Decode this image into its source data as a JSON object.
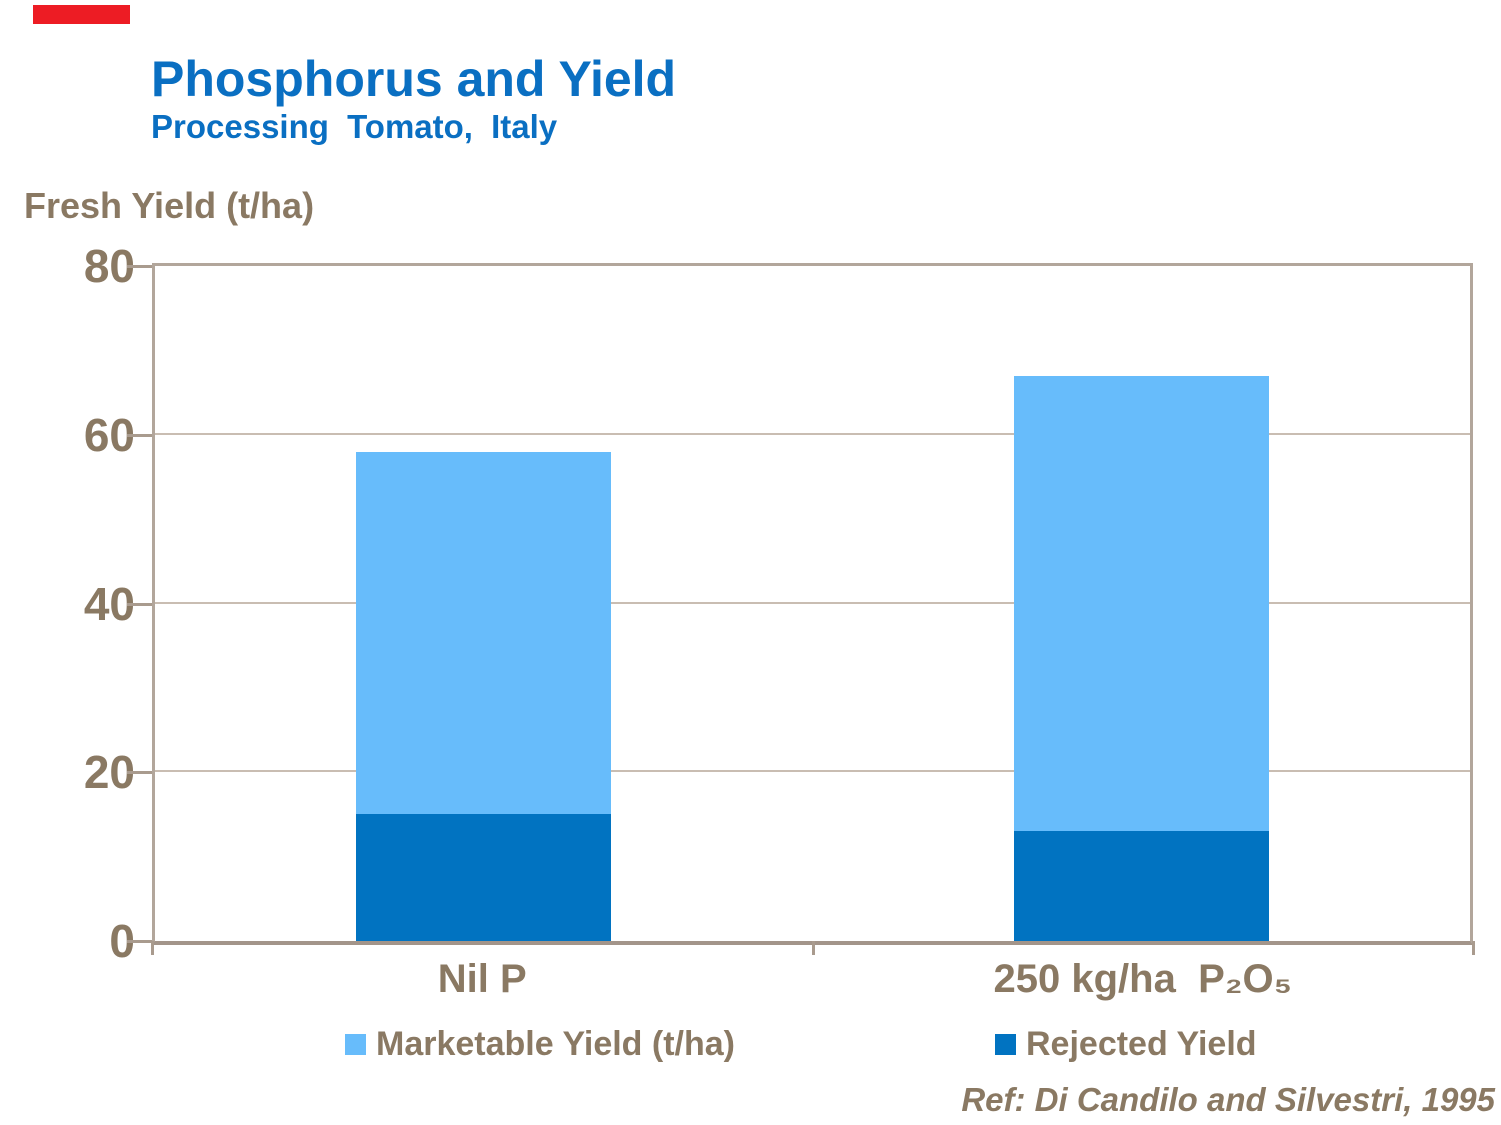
{
  "slide": {
    "title": "Phosphorus and Yield",
    "subtitle": "Processing Tomato, Italy",
    "y_axis_title": "Fresh Yield (t/ha)",
    "reference": "Ref: Di Candilo and Silvestri, 1995"
  },
  "colors": {
    "title_blue": "#0a6fc2",
    "text_brown": "#8a7963",
    "marketable_blue": "#67bcfb",
    "rejected_blue": "#0173c1",
    "frame_tan": "#b2a69b",
    "gridline_gray": "#c9bdb2",
    "accent_red": "#ed1c24"
  },
  "chart_data": {
    "type": "bar",
    "stacked": true,
    "title": "Phosphorus and Yield",
    "subtitle": "Processing Tomato, Italy",
    "ylabel": "Fresh Yield (t/ha)",
    "xlabel": "",
    "ylim": [
      0,
      80
    ],
    "yticks": [
      0,
      20,
      40,
      60,
      80
    ],
    "grid": "horizontal",
    "legend_position": "bottom",
    "categories": [
      "Nil P",
      "250 kg/ha  P₂O₅"
    ],
    "series": [
      {
        "name": "Marketable Yield (t/ha)",
        "color": "#67bcfb",
        "values": [
          43,
          54
        ]
      },
      {
        "name": "Rejected Yield",
        "color": "#0173c1",
        "values": [
          15,
          13
        ]
      }
    ],
    "totals": [
      58,
      67
    ],
    "reference": "Ref: Di Candilo and Silvestri, 1995"
  }
}
